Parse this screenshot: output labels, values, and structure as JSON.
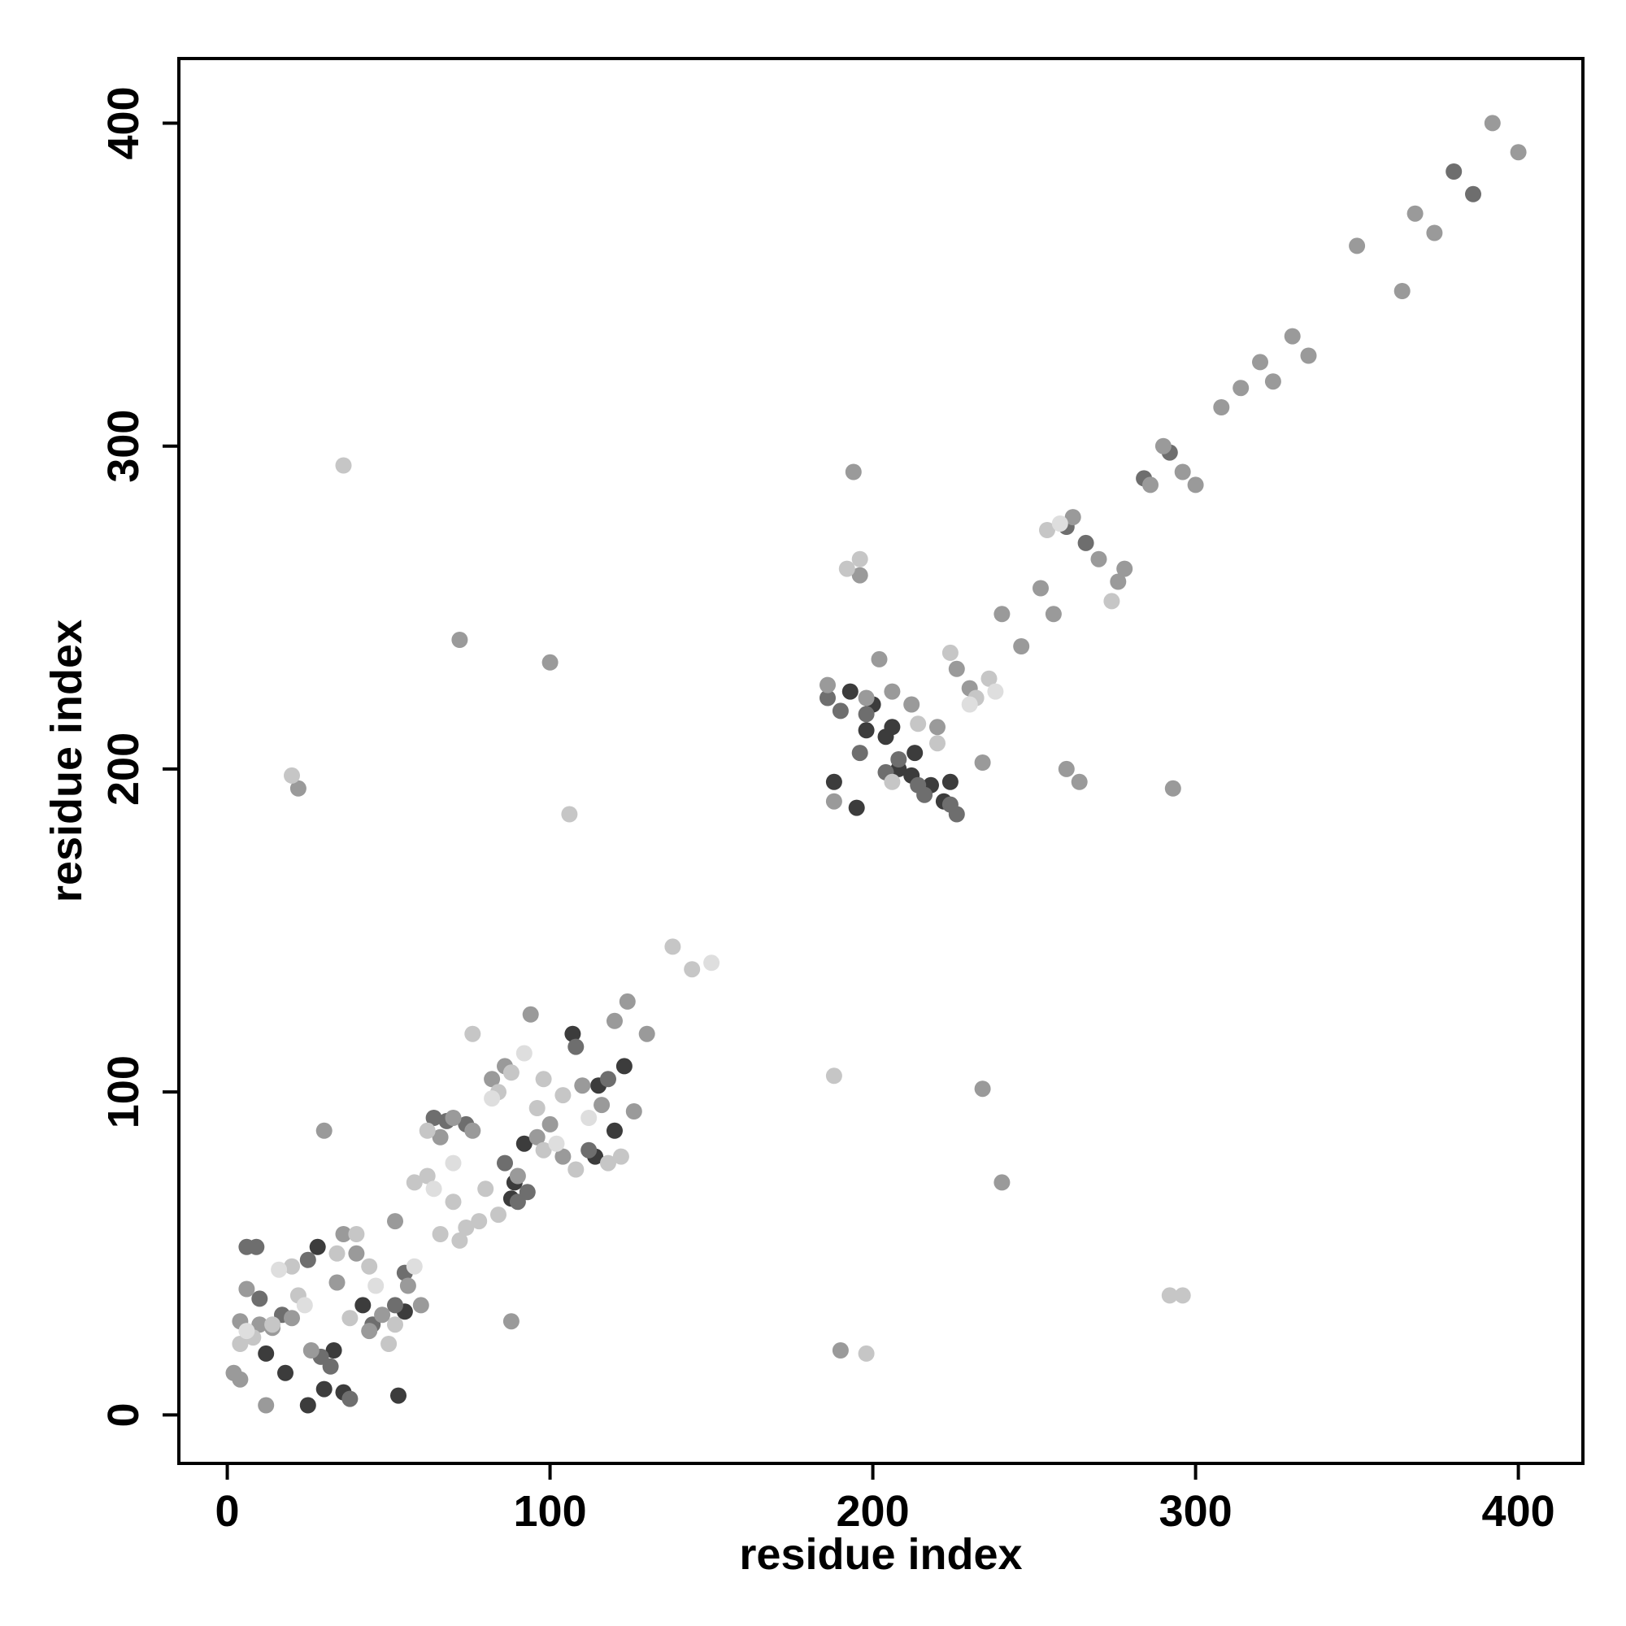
{
  "chart_data": {
    "type": "scatter",
    "title": "",
    "xlabel": "residue index",
    "ylabel": "residue index",
    "xlim": [
      -15,
      420
    ],
    "ylim": [
      -15,
      420
    ],
    "xticks": [
      0,
      100,
      200,
      300,
      400
    ],
    "yticks": [
      0,
      100,
      200,
      300,
      400
    ],
    "grid": false,
    "legend": "none",
    "series": [
      {
        "color": "#3c3c3c",
        "points": [
          [
            12,
            19
          ],
          [
            18,
            13
          ],
          [
            25,
            3
          ],
          [
            28,
            52
          ],
          [
            30,
            8
          ],
          [
            33,
            20
          ],
          [
            36,
            7
          ],
          [
            42,
            34
          ],
          [
            53,
            6
          ],
          [
            55,
            32
          ],
          [
            88,
            67
          ],
          [
            89,
            72
          ],
          [
            92,
            84
          ],
          [
            107,
            118
          ],
          [
            114,
            80
          ],
          [
            115,
            102
          ],
          [
            120,
            88
          ],
          [
            123,
            108
          ],
          [
            188,
            196
          ],
          [
            193,
            224
          ],
          [
            195,
            188
          ],
          [
            198,
            212
          ],
          [
            200,
            220
          ],
          [
            204,
            210
          ],
          [
            206,
            213
          ],
          [
            208,
            200
          ],
          [
            212,
            198
          ],
          [
            213,
            205
          ],
          [
            218,
            195
          ],
          [
            222,
            190
          ],
          [
            224,
            196
          ]
        ]
      },
      {
        "color": "#6e6e6e",
        "points": [
          [
            6,
            52
          ],
          [
            9,
            52
          ],
          [
            10,
            36
          ],
          [
            17,
            31
          ],
          [
            25,
            48
          ],
          [
            29,
            18
          ],
          [
            32,
            15
          ],
          [
            38,
            5
          ],
          [
            45,
            28
          ],
          [
            52,
            34
          ],
          [
            55,
            44
          ],
          [
            64,
            92
          ],
          [
            68,
            91
          ],
          [
            74,
            90
          ],
          [
            86,
            78
          ],
          [
            90,
            66
          ],
          [
            93,
            69
          ],
          [
            108,
            114
          ],
          [
            112,
            82
          ],
          [
            118,
            104
          ],
          [
            186,
            222
          ],
          [
            190,
            218
          ],
          [
            196,
            205
          ],
          [
            198,
            217
          ],
          [
            204,
            199
          ],
          [
            208,
            203
          ],
          [
            214,
            195
          ],
          [
            216,
            192
          ],
          [
            224,
            189
          ],
          [
            226,
            186
          ],
          [
            260,
            275
          ],
          [
            266,
            270
          ],
          [
            284,
            290
          ],
          [
            292,
            298
          ],
          [
            380,
            385
          ],
          [
            386,
            378
          ]
        ]
      },
      {
        "color": "#9a9a9a",
        "points": [
          [
            2,
            13
          ],
          [
            4,
            11
          ],
          [
            4,
            29
          ],
          [
            6,
            39
          ],
          [
            10,
            28
          ],
          [
            12,
            3
          ],
          [
            14,
            27
          ],
          [
            20,
            30
          ],
          [
            22,
            194
          ],
          [
            26,
            20
          ],
          [
            30,
            88
          ],
          [
            34,
            41
          ],
          [
            36,
            56
          ],
          [
            40,
            50
          ],
          [
            44,
            26
          ],
          [
            48,
            31
          ],
          [
            52,
            60
          ],
          [
            56,
            40
          ],
          [
            60,
            34
          ],
          [
            66,
            86
          ],
          [
            70,
            92
          ],
          [
            72,
            240
          ],
          [
            76,
            88
          ],
          [
            82,
            104
          ],
          [
            86,
            108
          ],
          [
            90,
            74
          ],
          [
            94,
            124
          ],
          [
            96,
            86
          ],
          [
            100,
            233
          ],
          [
            100,
            90
          ],
          [
            104,
            80
          ],
          [
            110,
            102
          ],
          [
            116,
            96
          ],
          [
            120,
            122
          ],
          [
            124,
            128
          ],
          [
            126,
            94
          ],
          [
            130,
            118
          ],
          [
            186,
            226
          ],
          [
            188,
            190
          ],
          [
            194,
            292
          ],
          [
            196,
            260
          ],
          [
            198,
            222
          ],
          [
            202,
            234
          ],
          [
            206,
            224
          ],
          [
            212,
            220
          ],
          [
            220,
            213
          ],
          [
            226,
            231
          ],
          [
            230,
            225
          ],
          [
            234,
            202
          ],
          [
            234,
            101
          ],
          [
            240,
            72
          ],
          [
            240,
            248
          ],
          [
            246,
            238
          ],
          [
            252,
            256
          ],
          [
            256,
            248
          ],
          [
            260,
            200
          ],
          [
            264,
            196
          ],
          [
            262,
            278
          ],
          [
            270,
            265
          ],
          [
            276,
            258
          ],
          [
            278,
            262
          ],
          [
            286,
            288
          ],
          [
            290,
            300
          ],
          [
            296,
            292
          ],
          [
            300,
            288
          ],
          [
            308,
            312
          ],
          [
            314,
            318
          ],
          [
            320,
            326
          ],
          [
            324,
            320
          ],
          [
            330,
            334
          ],
          [
            335,
            328
          ],
          [
            350,
            362
          ],
          [
            364,
            348
          ],
          [
            368,
            372
          ],
          [
            374,
            366
          ],
          [
            392,
            400
          ],
          [
            400,
            391
          ],
          [
            293,
            194
          ],
          [
            190,
            20
          ],
          [
            88,
            29
          ]
        ]
      },
      {
        "color": "#c6c6c6",
        "points": [
          [
            4,
            22
          ],
          [
            8,
            24
          ],
          [
            14,
            28
          ],
          [
            20,
            46
          ],
          [
            22,
            37
          ],
          [
            34,
            50
          ],
          [
            36,
            294
          ],
          [
            38,
            30
          ],
          [
            44,
            46
          ],
          [
            50,
            22
          ],
          [
            52,
            28
          ],
          [
            58,
            72
          ],
          [
            62,
            74
          ],
          [
            66,
            56
          ],
          [
            70,
            66
          ],
          [
            72,
            54
          ],
          [
            74,
            58
          ],
          [
            78,
            60
          ],
          [
            80,
            70
          ],
          [
            84,
            100
          ],
          [
            88,
            106
          ],
          [
            96,
            95
          ],
          [
            98,
            82
          ],
          [
            104,
            99
          ],
          [
            106,
            186
          ],
          [
            108,
            76
          ],
          [
            118,
            78
          ],
          [
            122,
            80
          ],
          [
            138,
            145
          ],
          [
            144,
            138
          ],
          [
            188,
            105
          ],
          [
            192,
            262
          ],
          [
            196,
            265
          ],
          [
            206,
            196
          ],
          [
            214,
            214
          ],
          [
            220,
            208
          ],
          [
            224,
            236
          ],
          [
            232,
            222
          ],
          [
            236,
            228
          ],
          [
            254,
            274
          ],
          [
            274,
            252
          ],
          [
            292,
            37
          ],
          [
            296,
            37
          ],
          [
            198,
            19
          ],
          [
            20,
            198
          ],
          [
            40,
            56
          ],
          [
            76,
            118
          ],
          [
            84,
            62
          ],
          [
            62,
            88
          ],
          [
            98,
            104
          ]
        ]
      },
      {
        "color": "#dedede",
        "points": [
          [
            6,
            26
          ],
          [
            16,
            45
          ],
          [
            24,
            34
          ],
          [
            46,
            40
          ],
          [
            58,
            46
          ],
          [
            64,
            70
          ],
          [
            70,
            78
          ],
          [
            82,
            98
          ],
          [
            92,
            112
          ],
          [
            102,
            84
          ],
          [
            112,
            92
          ],
          [
            150,
            140
          ],
          [
            230,
            220
          ],
          [
            238,
            224
          ],
          [
            258,
            276
          ]
        ]
      }
    ]
  }
}
